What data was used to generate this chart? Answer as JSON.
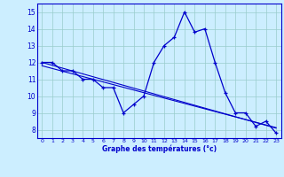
{
  "hours": [
    0,
    1,
    2,
    3,
    4,
    5,
    6,
    7,
    8,
    9,
    10,
    11,
    12,
    13,
    14,
    15,
    16,
    17,
    18,
    19,
    20,
    21,
    22,
    23
  ],
  "temps": [
    12,
    12,
    11.5,
    11.5,
    11,
    11,
    10.5,
    10.5,
    9,
    9.5,
    10,
    12,
    13,
    13.5,
    15,
    13.8,
    14,
    12,
    10.2,
    9,
    9,
    8.2,
    8.5,
    7.8
  ],
  "trend1": [
    12.0,
    11.83,
    11.66,
    11.49,
    11.32,
    11.15,
    10.98,
    10.81,
    10.64,
    10.47,
    10.3,
    10.13,
    9.96,
    9.79,
    9.62,
    9.45,
    9.28,
    9.11,
    8.94,
    8.77,
    8.6,
    8.43,
    8.26,
    8.09
  ],
  "trend2": [
    11.8,
    11.64,
    11.48,
    11.32,
    11.16,
    11.0,
    10.84,
    10.68,
    10.52,
    10.36,
    10.2,
    10.04,
    9.88,
    9.72,
    9.56,
    9.4,
    9.24,
    9.08,
    8.92,
    8.76,
    8.6,
    8.44,
    8.28,
    8.12
  ],
  "line_color": "#0000cc",
  "bg_color": "#cceeff",
  "grid_color": "#99cccc",
  "xlabel": "Graphe des températures (°c)",
  "ylim": [
    7.5,
    15.5
  ],
  "xlim": [
    -0.5,
    23.5
  ]
}
